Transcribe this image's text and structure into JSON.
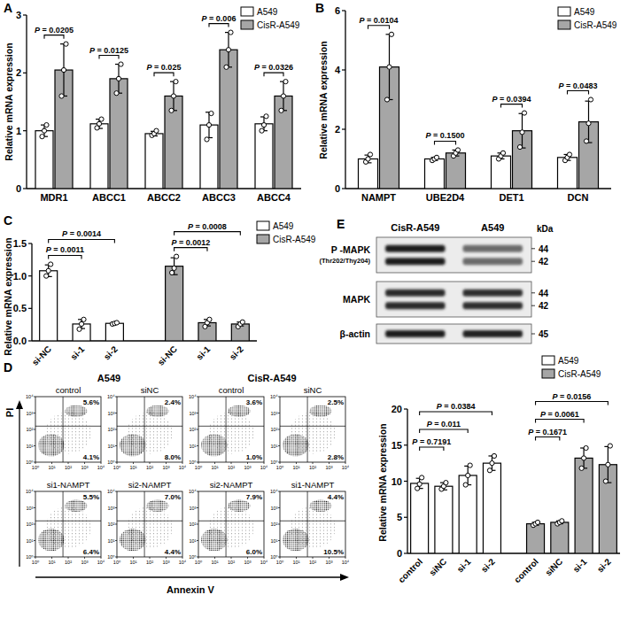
{
  "chart_data": [
    {
      "type": "bar",
      "title": "A",
      "y_label": "Relative mRNA expression",
      "categories": [
        "MDR1",
        "ABCC1",
        "ABCC2",
        "ABCC3",
        "ABCC4"
      ],
      "ylim": [
        0,
        3
      ],
      "yticks": [
        0,
        1,
        2,
        3
      ],
      "legend": "top-right",
      "series": [
        {
          "name": "A549",
          "color": "#ffffff",
          "values": [
            1.0,
            1.12,
            0.95,
            1.1,
            1.12
          ],
          "errors": [
            0.1,
            0.08,
            0.04,
            0.22,
            0.12
          ],
          "points": [
            [
              0.9,
              1.0,
              1.1
            ],
            [
              1.05,
              1.12,
              1.2
            ],
            [
              0.92,
              0.95,
              1.0
            ],
            [
              0.85,
              1.1,
              1.3
            ],
            [
              1.0,
              1.1,
              1.25
            ]
          ]
        },
        {
          "name": "CisR-A549",
          "color": "#a6a6a6",
          "values": [
            2.05,
            1.9,
            1.6,
            2.4,
            1.6
          ],
          "errors": [
            0.45,
            0.25,
            0.25,
            0.3,
            0.25
          ],
          "points": [
            [
              1.6,
              2.05,
              2.5
            ],
            [
              1.65,
              1.9,
              2.15
            ],
            [
              1.35,
              1.6,
              1.85
            ],
            [
              2.1,
              2.4,
              2.7
            ],
            [
              1.35,
              1.6,
              1.85
            ]
          ]
        }
      ],
      "annotations": [
        {
          "text": "P = 0.0205",
          "category": 0
        },
        {
          "text": "P = 0.0125",
          "category": 1
        },
        {
          "text": "P = 0.025",
          "category": 2
        },
        {
          "text": "P = 0.006",
          "category": 3
        },
        {
          "text": "P = 0.0326",
          "category": 4
        }
      ]
    },
    {
      "type": "bar",
      "title": "B",
      "y_label": "Relative mRNA expression",
      "categories": [
        "NAMPT",
        "UBE2D4",
        "DET1",
        "DCN"
      ],
      "ylim": [
        0,
        6
      ],
      "yticks": [
        0,
        2,
        4,
        6
      ],
      "legend": "top-right",
      "series": [
        {
          "name": "A549",
          "color": "#ffffff",
          "values": [
            1.0,
            1.0,
            1.1,
            1.05
          ],
          "errors": [
            0.13,
            0.05,
            0.1,
            0.1
          ],
          "points": [
            [
              0.9,
              1.0,
              1.15
            ],
            [
              0.95,
              1.0,
              1.05
            ],
            [
              1.0,
              1.1,
              1.2
            ],
            [
              0.95,
              1.05,
              1.15
            ]
          ]
        },
        {
          "name": "CisR-A549",
          "color": "#a6a6a6",
          "values": [
            4.1,
            1.2,
            1.95,
            2.25
          ],
          "errors": [
            1.1,
            0.1,
            0.58,
            0.7
          ],
          "points": [
            [
              3.0,
              4.1,
              5.2
            ],
            [
              1.1,
              1.2,
              1.3
            ],
            [
              1.4,
              1.9,
              2.55
            ],
            [
              1.6,
              2.2,
              3.0
            ]
          ]
        }
      ],
      "annotations": [
        {
          "text": "P = 0.0104",
          "category": 0
        },
        {
          "text": "P = 0.1500",
          "category": 1
        },
        {
          "text": "P = 0.0394",
          "category": 2
        },
        {
          "text": "P = 0.0483",
          "category": 3
        }
      ]
    },
    {
      "type": "groupbar",
      "title": "C",
      "y_label": "Relative mRNA expression",
      "categories": [
        "si-NC",
        "si-1",
        "si-2"
      ],
      "ylim": [
        0,
        1.5
      ],
      "yticks": [
        {
          "value": 0,
          "label": "0.0"
        },
        {
          "value": 0.5,
          "label": "0.5"
        },
        {
          "value": 1,
          "label": "1.0"
        },
        {
          "value": 1.5,
          "label": "1.5"
        }
      ],
      "legend": "top-right",
      "series": [
        {
          "name": "A549",
          "color": "#ffffff",
          "values": [
            1.08,
            0.26,
            0.27
          ],
          "errors": [
            0.09,
            0.07,
            0.01
          ],
          "points": [
            [
              1.0,
              1.08,
              1.18
            ],
            [
              0.18,
              0.26,
              0.33
            ],
            [
              0.26,
              0.27,
              0.28
            ]
          ]
        },
        {
          "name": "CisR-A549",
          "color": "#a6a6a6",
          "values": [
            1.15,
            0.28,
            0.26
          ],
          "errors": [
            0.13,
            0.05,
            0.03
          ],
          "points": [
            [
              1.05,
              1.12,
              1.3
            ],
            [
              0.22,
              0.28,
              0.33
            ],
            [
              0.22,
              0.26,
              0.29
            ]
          ]
        }
      ],
      "annotations": [
        {
          "text": "P = 0.0011",
          "series": 0,
          "from": 0,
          "to": 1
        },
        {
          "text": "P = 0.0014",
          "series": 0,
          "from": 0,
          "to": 2
        },
        {
          "text": "P = 0.0012",
          "series": 1,
          "from": 0,
          "to": 1
        },
        {
          "text": "P = 0.0008",
          "series": 1,
          "from": 0,
          "to": 2
        }
      ]
    },
    {
      "type": "groupbar",
      "y_label": "Relative mRNA expression",
      "categories": [
        "control",
        "siNC",
        "si-1",
        "si-2"
      ],
      "ylim": [
        0,
        20
      ],
      "yticks": [
        0,
        5,
        10,
        15,
        20
      ],
      "legend": "top-right",
      "series": [
        {
          "name": "A549",
          "color": "#ffffff",
          "values": [
            9.7,
            9.3,
            10.8,
            12.5
          ],
          "errors": [
            0.7,
            0.5,
            1.3,
            1.0
          ],
          "points": [
            [
              9.0,
              9.6,
              10.5
            ],
            [
              8.9,
              9.3,
              9.8
            ],
            [
              9.5,
              10.8,
              12.2
            ],
            [
              11.5,
              12.5,
              13.5
            ]
          ]
        },
        {
          "name": "CisR-A549",
          "color": "#a6a6a6",
          "values": [
            4.1,
            4.3,
            13.2,
            12.3
          ],
          "errors": [
            0.2,
            0.2,
            1.4,
            2.5
          ],
          "points": [
            [
              3.9,
              4.1,
              4.3
            ],
            [
              4.1,
              4.3,
              4.5
            ],
            [
              11.8,
              13.2,
              14.6
            ],
            [
              10.0,
              12.3,
              14.9
            ]
          ]
        }
      ],
      "annotations": [
        {
          "text": "P = 0.7191",
          "series": 0,
          "from": 0,
          "to": 1
        },
        {
          "text": "P = 0.011",
          "series": 0,
          "from": 0,
          "to": 2
        },
        {
          "text": "P = 0.0384",
          "series": 0,
          "from": 0,
          "to": 3
        },
        {
          "text": "P = 0.1671",
          "series": 1,
          "from": 0,
          "to": 1
        },
        {
          "text": "P = 0.0061",
          "series": 1,
          "from": 0,
          "to": 2
        },
        {
          "text": "P = 0.0156",
          "series": 1,
          "from": 0,
          "to": 3
        }
      ]
    }
  ],
  "flow_cytometry": {
    "title": "D",
    "x_label": "Annexin V",
    "y_label": "PI",
    "log": true,
    "xlim": [
      1,
      10000
    ],
    "ylim": [
      1,
      10000
    ],
    "xticks": [
      {
        "value": 1,
        "label": "10⁰"
      },
      {
        "value": 10,
        "label": "10¹"
      },
      {
        "value": 100,
        "label": "10²"
      },
      {
        "value": 1000,
        "label": "10³"
      },
      {
        "value": 10000,
        "label": "10⁴"
      }
    ],
    "yticks": [
      {
        "value": 1,
        "label": "10⁰"
      },
      {
        "value": 10,
        "label": "10¹"
      },
      {
        "value": 100,
        "label": "10²"
      },
      {
        "value": 1000,
        "label": "10³"
      },
      {
        "value": 10000,
        "label": "10⁴"
      }
    ],
    "groups": [
      {
        "title": "A549",
        "plots": [
          {
            "label": "control",
            "upper_right": "5.6%",
            "lower_right": "4.1%"
          },
          {
            "label": "siNC",
            "upper_right": "2.4%",
            "lower_right": "8.0%"
          },
          {
            "label": "si1-NAMPT",
            "upper_right": "5.5%",
            "lower_right": "6.4%"
          },
          {
            "label": "si2-NAMPT",
            "upper_right": "7.0%",
            "lower_right": "4.4%"
          }
        ]
      },
      {
        "title": "CisR-A549",
        "plots": [
          {
            "label": "control",
            "upper_right": "3.6%",
            "lower_right": "1.0%"
          },
          {
            "label": "siNC",
            "upper_right": "2.5%",
            "lower_right": "2.8%"
          },
          {
            "label": "si2-NAMPT",
            "upper_right": "7.9%",
            "lower_right": "6.0%"
          },
          {
            "label": "si1-NAMPT",
            "upper_right": "4.4%",
            "lower_right": "10.5%"
          }
        ]
      }
    ]
  },
  "western_blot": {
    "title": "E",
    "columns": [
      "CisR-A549",
      "A549"
    ],
    "unit": "kDa",
    "rows": [
      {
        "label": "P -MAPK",
        "sublabel": "(Thr202/Thy204)",
        "markers": [
          44,
          42
        ]
      },
      {
        "label": "MAPK",
        "markers": [
          44,
          42
        ]
      },
      {
        "label": "β-actin",
        "markers": [
          45
        ]
      }
    ]
  }
}
